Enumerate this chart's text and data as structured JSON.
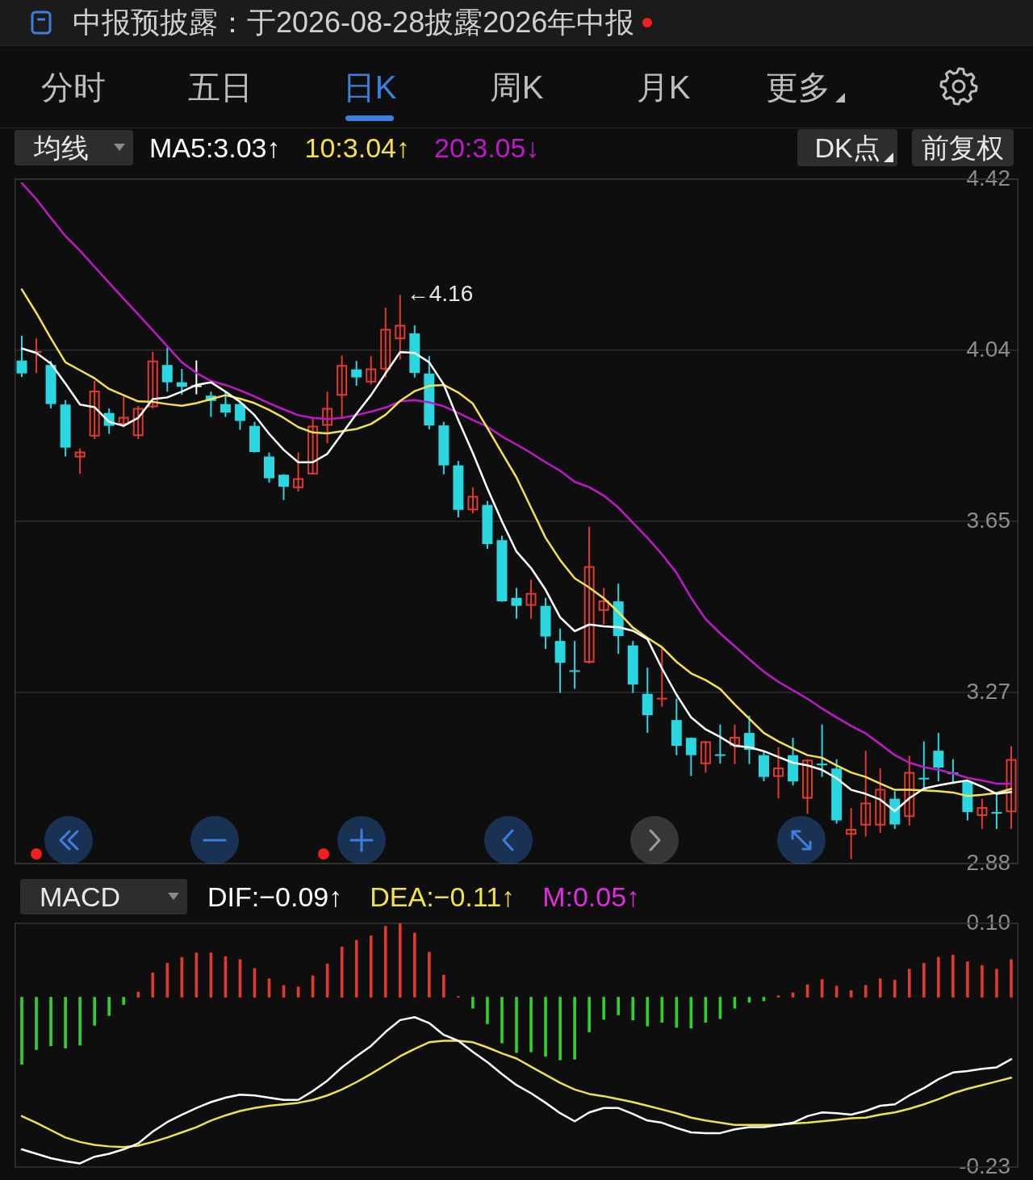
{
  "chart_data": [
    {
      "type": "candlestick",
      "categories": [
        null,
        null,
        null,
        null,
        null,
        null,
        null,
        null,
        null,
        null,
        null,
        null,
        null,
        null,
        null,
        null,
        null,
        null,
        null,
        null,
        null,
        null,
        null,
        null,
        null,
        null,
        null,
        null,
        null,
        null,
        null,
        null,
        null,
        null,
        null,
        null,
        null,
        null,
        null,
        null,
        null,
        null,
        null,
        null,
        null,
        null,
        null,
        null,
        null,
        null,
        null,
        null,
        null,
        null,
        null,
        null,
        null,
        null,
        null,
        null,
        null,
        null,
        null,
        null,
        null,
        null,
        null,
        null,
        null
      ],
      "ohlc": [
        [
          4.012,
          4.068,
          3.975,
          3.983
        ],
        [
          4.03,
          4.062,
          3.984,
          4.033
        ],
        [
          4.002,
          4.011,
          3.904,
          3.914
        ],
        [
          3.913,
          3.923,
          3.796,
          3.816
        ],
        [
          3.794,
          3.814,
          3.757,
          3.807
        ],
        [
          3.841,
          3.966,
          3.835,
          3.944
        ],
        [
          3.894,
          3.904,
          3.847,
          3.865
        ],
        [
          3.868,
          3.931,
          3.862,
          3.885
        ],
        [
          3.842,
          3.91,
          3.835,
          3.905
        ],
        [
          3.907,
          4.032,
          3.904,
          4.012
        ],
        [
          4.002,
          4.041,
          3.942,
          3.963
        ],
        [
          3.963,
          3.993,
          3.935,
          3.953
        ],
        [
          3.956,
          4.012,
          3.936,
          3.956
        ],
        [
          3.933,
          3.942,
          3.885,
          3.921
        ],
        [
          3.914,
          3.942,
          3.885,
          3.895
        ],
        [
          3.914,
          3.919,
          3.856,
          3.876
        ],
        [
          3.865,
          3.874,
          3.805,
          3.806
        ],
        [
          3.796,
          3.805,
          3.737,
          3.747
        ],
        [
          3.755,
          3.756,
          3.698,
          3.728
        ],
        [
          3.725,
          3.805,
          3.717,
          3.747
        ],
        [
          3.756,
          3.883,
          3.755,
          3.865
        ],
        [
          3.865,
          3.942,
          3.826,
          3.905
        ],
        [
          3.933,
          4.023,
          3.883,
          4.002
        ],
        [
          3.992,
          4.011,
          3.955,
          3.974
        ],
        [
          3.963,
          4.022,
          3.958,
          3.994
        ],
        [
          3.992,
          4.131,
          3.974,
          4.083
        ],
        [
          4.06,
          4.16,
          4.014,
          4.092
        ],
        [
          4.073,
          4.091,
          3.974,
          3.984
        ],
        [
          3.983,
          4.022,
          3.857,
          3.866
        ],
        [
          3.866,
          3.874,
          3.756,
          3.776
        ],
        [
          3.776,
          3.786,
          3.659,
          3.676
        ],
        [
          3.675,
          3.727,
          3.668,
          3.707
        ],
        [
          3.687,
          3.696,
          3.588,
          3.599
        ],
        [
          3.608,
          3.618,
          3.469,
          3.47
        ],
        [
          3.478,
          3.5,
          3.431,
          3.46
        ],
        [
          3.46,
          3.519,
          3.431,
          3.489
        ],
        [
          3.46,
          3.478,
          3.363,
          3.391
        ],
        [
          3.381,
          3.409,
          3.264,
          3.332
        ],
        [
          3.315,
          3.381,
          3.273,
          3.312
        ],
        [
          3.332,
          3.638,
          3.33,
          3.549
        ],
        [
          3.449,
          3.5,
          3.418,
          3.472
        ],
        [
          3.47,
          3.51,
          3.352,
          3.392
        ],
        [
          3.371,
          3.381,
          3.264,
          3.283
        ],
        [
          3.262,
          3.321,
          3.174,
          3.214
        ],
        [
          3.251,
          3.369,
          3.233,
          3.253
        ],
        [
          3.203,
          3.251,
          3.124,
          3.145
        ],
        [
          3.163,
          3.164,
          3.077,
          3.124
        ],
        [
          3.104,
          3.156,
          3.085,
          3.155
        ],
        [
          3.126,
          3.193,
          3.105,
          3.124
        ],
        [
          3.145,
          3.193,
          3.104,
          3.165
        ],
        [
          3.174,
          3.213,
          3.104,
          3.136
        ],
        [
          3.124,
          3.131,
          3.065,
          3.075
        ],
        [
          3.075,
          3.142,
          3.027,
          3.096
        ],
        [
          3.124,
          3.163,
          3.056,
          3.065
        ],
        [
          3.026,
          3.115,
          2.992,
          3.114
        ],
        [
          3.105,
          3.193,
          3.075,
          3.103
        ],
        [
          3.094,
          3.115,
          2.97,
          2.977
        ],
        [
          2.945,
          3.005,
          2.89,
          2.958
        ],
        [
          2.966,
          3.134,
          2.941,
          3.017
        ],
        [
          2.966,
          3.094,
          2.949,
          3.048
        ],
        [
          3.026,
          3.043,
          2.958,
          2.968
        ],
        [
          2.985,
          3.123,
          2.966,
          3.086
        ],
        [
          3.073,
          3.155,
          3.046,
          3.071
        ],
        [
          3.134,
          3.174,
          3.065,
          3.096
        ],
        [
          3.085,
          3.115,
          3.059,
          3.083
        ],
        [
          3.065,
          3.066,
          2.977,
          2.996
        ],
        [
          2.987,
          3.026,
          2.958,
          3.007
        ],
        [
          2.996,
          3.037,
          2.958,
          2.994
        ],
        [
          2.996,
          3.144,
          2.958,
          3.115
        ]
      ],
      "colors": [
        "#2ad6e0",
        "#e23a2c",
        "#2ad6e0",
        "#2ad6e0",
        "#e23a2c",
        "#e23a2c",
        "#2ad6e0",
        "#e23a2c",
        "#e23a2c",
        "#e23a2c",
        "#2ad6e0",
        "#2ad6e0",
        "#ffffff",
        "#2ad6e0",
        "#2ad6e0",
        "#2ad6e0",
        "#2ad6e0",
        "#2ad6e0",
        "#2ad6e0",
        "#e23a2c",
        "#e23a2c",
        "#e23a2c",
        "#e23a2c",
        "#2ad6e0",
        "#e23a2c",
        "#e23a2c",
        "#e23a2c",
        "#2ad6e0",
        "#2ad6e0",
        "#2ad6e0",
        "#2ad6e0",
        "#e23a2c",
        "#2ad6e0",
        "#2ad6e0",
        "#2ad6e0",
        "#e23a2c",
        "#2ad6e0",
        "#2ad6e0",
        "#2ad6e0",
        "#e23a2c",
        "#e23a2c",
        "#2ad6e0",
        "#2ad6e0",
        "#2ad6e0",
        "#e23a2c",
        "#2ad6e0",
        "#2ad6e0",
        "#e23a2c",
        "#2ad6e0",
        "#e23a2c",
        "#2ad6e0",
        "#2ad6e0",
        "#e23a2c",
        "#2ad6e0",
        "#e23a2c",
        "#2ad6e0",
        "#2ad6e0",
        "#e23a2c",
        "#e23a2c",
        "#e23a2c",
        "#2ad6e0",
        "#e23a2c",
        "#2ad6e0",
        "#2ad6e0",
        "#2ad6e0",
        "#2ad6e0",
        "#e23a2c",
        "#2ad6e0",
        "#e23a2c"
      ],
      "series": [
        {
          "name": "MA5:3.03↑",
          "type": "line",
          "color": "#ffffff",
          "values": [
            4.039,
            4.029,
            4.005,
            3.96,
            3.913,
            3.907,
            3.874,
            3.865,
            3.883,
            3.925,
            3.929,
            3.942,
            3.957,
            3.963,
            3.942,
            3.919,
            3.889,
            3.847,
            3.811,
            3.783,
            3.783,
            3.802,
            3.847,
            3.892,
            3.934,
            3.983,
            4.031,
            4.029,
            4.008,
            3.958,
            3.878,
            3.804,
            3.724,
            3.65,
            3.582,
            3.545,
            3.496,
            3.434,
            3.403,
            3.418,
            3.414,
            3.412,
            3.404,
            3.385,
            3.319,
            3.26,
            3.209,
            3.182,
            3.165,
            3.145,
            3.142,
            3.133,
            3.12,
            3.107,
            3.101,
            3.091,
            3.072,
            3.046,
            3.037,
            3.024,
            2.998,
            3.027,
            3.049,
            3.056,
            3.062,
            3.067,
            3.053,
            3.037,
            3.041
          ]
        },
        {
          "name": "10:3.04↑",
          "type": "line",
          "color": "#f3e152",
          "values": [
            4.172,
            4.119,
            4.062,
            4.008,
            3.99,
            3.972,
            3.948,
            3.934,
            3.92,
            3.919,
            3.914,
            3.91,
            3.916,
            3.925,
            3.934,
            3.926,
            3.916,
            3.901,
            3.883,
            3.862,
            3.85,
            3.848,
            3.853,
            3.858,
            3.869,
            3.89,
            3.921,
            3.943,
            3.955,
            3.957,
            3.94,
            3.915,
            3.86,
            3.804,
            3.749,
            3.681,
            3.613,
            3.563,
            3.522,
            3.501,
            3.477,
            3.446,
            3.411,
            3.388,
            3.367,
            3.334,
            3.308,
            3.293,
            3.273,
            3.238,
            3.206,
            3.174,
            3.155,
            3.139,
            3.124,
            3.118,
            3.101,
            3.085,
            3.075,
            3.06,
            3.046,
            3.046,
            3.045,
            3.043,
            3.04,
            3.032,
            3.035,
            3.039,
            3.048
          ]
        },
        {
          "name": "20:3.05↓",
          "type": "line",
          "color": "#c01ac8",
          "values": [
            4.411,
            4.375,
            4.333,
            4.292,
            4.259,
            4.223,
            4.187,
            4.151,
            4.116,
            4.08,
            4.044,
            4.008,
            3.984,
            3.966,
            3.957,
            3.945,
            3.931,
            3.916,
            3.902,
            3.889,
            3.883,
            3.88,
            3.883,
            3.889,
            3.897,
            3.906,
            3.92,
            3.923,
            3.918,
            3.909,
            3.894,
            3.878,
            3.863,
            3.841,
            3.823,
            3.804,
            3.783,
            3.764,
            3.739,
            3.727,
            3.708,
            3.681,
            3.647,
            3.613,
            3.576,
            3.534,
            3.478,
            3.43,
            3.398,
            3.369,
            3.34,
            3.312,
            3.289,
            3.27,
            3.251,
            3.229,
            3.209,
            3.19,
            3.173,
            3.149,
            3.124,
            3.107,
            3.097,
            3.091,
            3.083,
            3.073,
            3.067,
            3.06,
            3.06
          ]
        }
      ],
      "ylim": [
        2.88,
        4.42
      ],
      "yticks": [
        4.42,
        {
          "value": 4.035,
          "label": "4.04"
        },
        3.65,
        {
          "value": 3.265,
          "label": "3.27"
        },
        2.88
      ],
      "grid": "y",
      "legend": "top left",
      "legend_title": "均线",
      "marker": "none",
      "tick_labels": "y",
      "annotations": [
        "中报预披露：于2026-08-28披露2026年中报",
        "分时",
        "五日",
        "日K",
        "周K",
        "月K",
        "更多",
        "DK点",
        "前复权",
        "←4.16"
      ]
    },
    {
      "type": "bar",
      "categories": [
        null,
        null,
        null,
        null,
        null,
        null,
        null,
        null,
        null,
        null,
        null,
        null,
        null,
        null,
        null,
        null,
        null,
        null,
        null,
        null,
        null,
        null,
        null,
        null,
        null,
        null,
        null,
        null,
        null,
        null,
        null,
        null,
        null,
        null,
        null,
        null,
        null,
        null,
        null,
        null,
        null,
        null,
        null,
        null,
        null,
        null,
        null,
        null,
        null,
        null,
        null,
        null,
        null,
        null,
        null,
        null,
        null,
        null,
        null,
        null,
        null,
        null,
        null,
        null,
        null,
        null,
        null,
        null,
        null
      ],
      "series": [
        {
          "type": "bar",
          "colors": [
            "#31d12b",
            "#31d12b",
            "#31d12b",
            "#31d12b",
            "#31d12b",
            "#31d12b",
            "#31d12b",
            "#31d12b",
            "#e23a2c",
            "#e23a2c",
            "#e23a2c",
            "#e23a2c",
            "#e23a2c",
            "#e23a2c",
            "#e23a2c",
            "#e23a2c",
            "#e23a2c",
            "#e23a2c",
            "#e23a2c",
            "#e23a2c",
            "#e23a2c",
            "#e23a2c",
            "#e23a2c",
            "#e23a2c",
            "#e23a2c",
            "#e23a2c",
            "#e23a2c",
            "#e23a2c",
            "#e23a2c",
            "#e23a2c",
            "#e23a2c",
            "#31d12b",
            "#31d12b",
            "#31d12b",
            "#31d12b",
            "#31d12b",
            "#31d12b",
            "#31d12b",
            "#31d12b",
            "#31d12b",
            "#31d12b",
            "#31d12b",
            "#31d12b",
            "#31d12b",
            "#31d12b",
            "#31d12b",
            "#31d12b",
            "#31d12b",
            "#31d12b",
            "#31d12b",
            "#31d12b",
            "#31d12b",
            "#e23a2c",
            "#e23a2c",
            "#e23a2c",
            "#e23a2c",
            "#e23a2c",
            "#e23a2c",
            "#e23a2c",
            "#e23a2c",
            "#e23a2c",
            "#e23a2c",
            "#e23a2c",
            "#e23a2c",
            "#e23a2c",
            "#e23a2c",
            "#e23a2c",
            "#e23a2c",
            "#e23a2c"
          ],
          "values": [
            -0.091,
            -0.071,
            -0.066,
            -0.069,
            -0.065,
            -0.038,
            -0.025,
            -0.01,
            0.007,
            0.033,
            0.046,
            0.054,
            0.06,
            0.06,
            0.055,
            0.051,
            0.039,
            0.025,
            0.016,
            0.014,
            0.029,
            0.045,
            0.068,
            0.077,
            0.083,
            0.096,
            0.1,
            0.087,
            0.061,
            0.03,
            0.001,
            -0.015,
            -0.036,
            -0.062,
            -0.075,
            -0.074,
            -0.08,
            -0.085,
            -0.084,
            -0.047,
            -0.03,
            -0.024,
            -0.031,
            -0.039,
            -0.034,
            -0.041,
            -0.042,
            -0.034,
            -0.029,
            -0.015,
            -0.007,
            -0.005,
            0.002,
            0.006,
            0.017,
            0.024,
            0.015,
            0.009,
            0.016,
            0.025,
            0.023,
            0.038,
            0.046,
            0.054,
            0.057,
            0.048,
            0.043,
            0.038,
            0.051
          ]
        },
        {
          "type": "line",
          "name": "DIF:−0.09↑",
          "color": "#ffffff",
          "values": [
            -0.206,
            -0.212,
            -0.218,
            -0.222,
            -0.225,
            -0.216,
            -0.212,
            -0.206,
            -0.198,
            -0.182,
            -0.169,
            -0.159,
            -0.15,
            -0.142,
            -0.136,
            -0.132,
            -0.133,
            -0.136,
            -0.139,
            -0.139,
            -0.127,
            -0.113,
            -0.095,
            -0.08,
            -0.066,
            -0.047,
            -0.031,
            -0.027,
            -0.035,
            -0.051,
            -0.059,
            -0.074,
            -0.088,
            -0.104,
            -0.119,
            -0.13,
            -0.143,
            -0.157,
            -0.168,
            -0.156,
            -0.15,
            -0.15,
            -0.158,
            -0.167,
            -0.17,
            -0.177,
            -0.183,
            -0.184,
            -0.184,
            -0.179,
            -0.176,
            -0.176,
            -0.173,
            -0.17,
            -0.161,
            -0.156,
            -0.157,
            -0.159,
            -0.154,
            -0.147,
            -0.145,
            -0.133,
            -0.123,
            -0.111,
            -0.102,
            -0.1,
            -0.097,
            -0.095,
            -0.084
          ]
        },
        {
          "type": "line",
          "name": "DEA:−0.11↑",
          "color": "#f0e14e",
          "values": [
            -0.161,
            -0.17,
            -0.18,
            -0.19,
            -0.196,
            -0.2,
            -0.202,
            -0.203,
            -0.201,
            -0.196,
            -0.19,
            -0.183,
            -0.176,
            -0.167,
            -0.16,
            -0.154,
            -0.15,
            -0.147,
            -0.145,
            -0.143,
            -0.139,
            -0.133,
            -0.125,
            -0.115,
            -0.104,
            -0.092,
            -0.08,
            -0.07,
            -0.061,
            -0.059,
            -0.059,
            -0.061,
            -0.068,
            -0.076,
            -0.083,
            -0.094,
            -0.105,
            -0.116,
            -0.125,
            -0.131,
            -0.134,
            -0.138,
            -0.142,
            -0.147,
            -0.152,
            -0.157,
            -0.163,
            -0.167,
            -0.17,
            -0.173,
            -0.173,
            -0.173,
            -0.173,
            -0.171,
            -0.17,
            -0.168,
            -0.166,
            -0.164,
            -0.163,
            -0.159,
            -0.156,
            -0.151,
            -0.145,
            -0.138,
            -0.13,
            -0.124,
            -0.119,
            -0.114,
            -0.109
          ]
        }
      ],
      "ylim": [
        -0.23,
        0.1
      ],
      "yticks": [
        {
          "value": 0.1,
          "label": "0.10"
        },
        -0.23
      ],
      "legend": "top left",
      "legend_title": "MACD",
      "marker": "none",
      "tick_labels": "y",
      "annotations": [
        "M:0.05↑"
      ]
    }
  ]
}
